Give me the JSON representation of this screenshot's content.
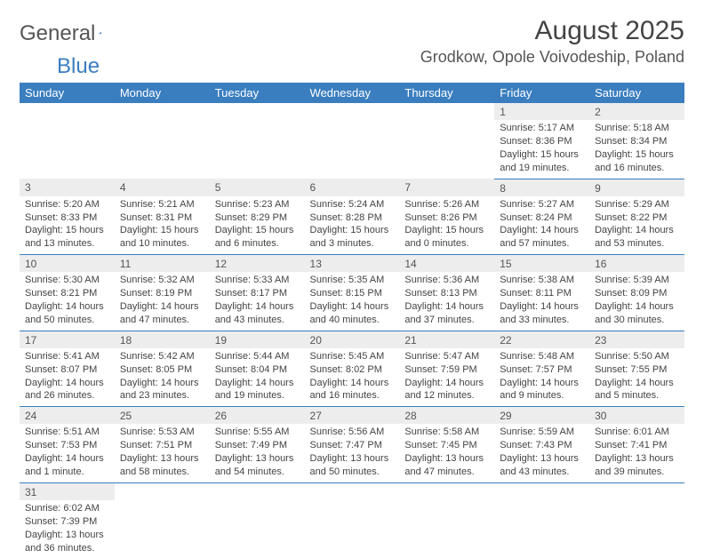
{
  "logo": {
    "text1": "General",
    "text2": "Blue"
  },
  "title": "August 2025",
  "location": "Grodkow, Opole Voivodeship, Poland",
  "headers": [
    "Sunday",
    "Monday",
    "Tuesday",
    "Wednesday",
    "Thursday",
    "Friday",
    "Saturday"
  ],
  "colors": {
    "header_bg": "#3a7ebf",
    "daynum_bg": "#ededed",
    "row_border": "#3a7ebf"
  },
  "weeks": [
    [
      null,
      null,
      null,
      null,
      null,
      {
        "n": "1",
        "sr": "Sunrise: 5:17 AM",
        "ss": "Sunset: 8:36 PM",
        "d1": "Daylight: 15 hours",
        "d2": "and 19 minutes."
      },
      {
        "n": "2",
        "sr": "Sunrise: 5:18 AM",
        "ss": "Sunset: 8:34 PM",
        "d1": "Daylight: 15 hours",
        "d2": "and 16 minutes."
      }
    ],
    [
      {
        "n": "3",
        "sr": "Sunrise: 5:20 AM",
        "ss": "Sunset: 8:33 PM",
        "d1": "Daylight: 15 hours",
        "d2": "and 13 minutes."
      },
      {
        "n": "4",
        "sr": "Sunrise: 5:21 AM",
        "ss": "Sunset: 8:31 PM",
        "d1": "Daylight: 15 hours",
        "d2": "and 10 minutes."
      },
      {
        "n": "5",
        "sr": "Sunrise: 5:23 AM",
        "ss": "Sunset: 8:29 PM",
        "d1": "Daylight: 15 hours",
        "d2": "and 6 minutes."
      },
      {
        "n": "6",
        "sr": "Sunrise: 5:24 AM",
        "ss": "Sunset: 8:28 PM",
        "d1": "Daylight: 15 hours",
        "d2": "and 3 minutes."
      },
      {
        "n": "7",
        "sr": "Sunrise: 5:26 AM",
        "ss": "Sunset: 8:26 PM",
        "d1": "Daylight: 15 hours",
        "d2": "and 0 minutes."
      },
      {
        "n": "8",
        "sr": "Sunrise: 5:27 AM",
        "ss": "Sunset: 8:24 PM",
        "d1": "Daylight: 14 hours",
        "d2": "and 57 minutes."
      },
      {
        "n": "9",
        "sr": "Sunrise: 5:29 AM",
        "ss": "Sunset: 8:22 PM",
        "d1": "Daylight: 14 hours",
        "d2": "and 53 minutes."
      }
    ],
    [
      {
        "n": "10",
        "sr": "Sunrise: 5:30 AM",
        "ss": "Sunset: 8:21 PM",
        "d1": "Daylight: 14 hours",
        "d2": "and 50 minutes."
      },
      {
        "n": "11",
        "sr": "Sunrise: 5:32 AM",
        "ss": "Sunset: 8:19 PM",
        "d1": "Daylight: 14 hours",
        "d2": "and 47 minutes."
      },
      {
        "n": "12",
        "sr": "Sunrise: 5:33 AM",
        "ss": "Sunset: 8:17 PM",
        "d1": "Daylight: 14 hours",
        "d2": "and 43 minutes."
      },
      {
        "n": "13",
        "sr": "Sunrise: 5:35 AM",
        "ss": "Sunset: 8:15 PM",
        "d1": "Daylight: 14 hours",
        "d2": "and 40 minutes."
      },
      {
        "n": "14",
        "sr": "Sunrise: 5:36 AM",
        "ss": "Sunset: 8:13 PM",
        "d1": "Daylight: 14 hours",
        "d2": "and 37 minutes."
      },
      {
        "n": "15",
        "sr": "Sunrise: 5:38 AM",
        "ss": "Sunset: 8:11 PM",
        "d1": "Daylight: 14 hours",
        "d2": "and 33 minutes."
      },
      {
        "n": "16",
        "sr": "Sunrise: 5:39 AM",
        "ss": "Sunset: 8:09 PM",
        "d1": "Daylight: 14 hours",
        "d2": "and 30 minutes."
      }
    ],
    [
      {
        "n": "17",
        "sr": "Sunrise: 5:41 AM",
        "ss": "Sunset: 8:07 PM",
        "d1": "Daylight: 14 hours",
        "d2": "and 26 minutes."
      },
      {
        "n": "18",
        "sr": "Sunrise: 5:42 AM",
        "ss": "Sunset: 8:05 PM",
        "d1": "Daylight: 14 hours",
        "d2": "and 23 minutes."
      },
      {
        "n": "19",
        "sr": "Sunrise: 5:44 AM",
        "ss": "Sunset: 8:04 PM",
        "d1": "Daylight: 14 hours",
        "d2": "and 19 minutes."
      },
      {
        "n": "20",
        "sr": "Sunrise: 5:45 AM",
        "ss": "Sunset: 8:02 PM",
        "d1": "Daylight: 14 hours",
        "d2": "and 16 minutes."
      },
      {
        "n": "21",
        "sr": "Sunrise: 5:47 AM",
        "ss": "Sunset: 7:59 PM",
        "d1": "Daylight: 14 hours",
        "d2": "and 12 minutes."
      },
      {
        "n": "22",
        "sr": "Sunrise: 5:48 AM",
        "ss": "Sunset: 7:57 PM",
        "d1": "Daylight: 14 hours",
        "d2": "and 9 minutes."
      },
      {
        "n": "23",
        "sr": "Sunrise: 5:50 AM",
        "ss": "Sunset: 7:55 PM",
        "d1": "Daylight: 14 hours",
        "d2": "and 5 minutes."
      }
    ],
    [
      {
        "n": "24",
        "sr": "Sunrise: 5:51 AM",
        "ss": "Sunset: 7:53 PM",
        "d1": "Daylight: 14 hours",
        "d2": "and 1 minute."
      },
      {
        "n": "25",
        "sr": "Sunrise: 5:53 AM",
        "ss": "Sunset: 7:51 PM",
        "d1": "Daylight: 13 hours",
        "d2": "and 58 minutes."
      },
      {
        "n": "26",
        "sr": "Sunrise: 5:55 AM",
        "ss": "Sunset: 7:49 PM",
        "d1": "Daylight: 13 hours",
        "d2": "and 54 minutes."
      },
      {
        "n": "27",
        "sr": "Sunrise: 5:56 AM",
        "ss": "Sunset: 7:47 PM",
        "d1": "Daylight: 13 hours",
        "d2": "and 50 minutes."
      },
      {
        "n": "28",
        "sr": "Sunrise: 5:58 AM",
        "ss": "Sunset: 7:45 PM",
        "d1": "Daylight: 13 hours",
        "d2": "and 47 minutes."
      },
      {
        "n": "29",
        "sr": "Sunrise: 5:59 AM",
        "ss": "Sunset: 7:43 PM",
        "d1": "Daylight: 13 hours",
        "d2": "and 43 minutes."
      },
      {
        "n": "30",
        "sr": "Sunrise: 6:01 AM",
        "ss": "Sunset: 7:41 PM",
        "d1": "Daylight: 13 hours",
        "d2": "and 39 minutes."
      }
    ],
    [
      {
        "n": "31",
        "sr": "Sunrise: 6:02 AM",
        "ss": "Sunset: 7:39 PM",
        "d1": "Daylight: 13 hours",
        "d2": "and 36 minutes."
      },
      null,
      null,
      null,
      null,
      null,
      null
    ]
  ]
}
